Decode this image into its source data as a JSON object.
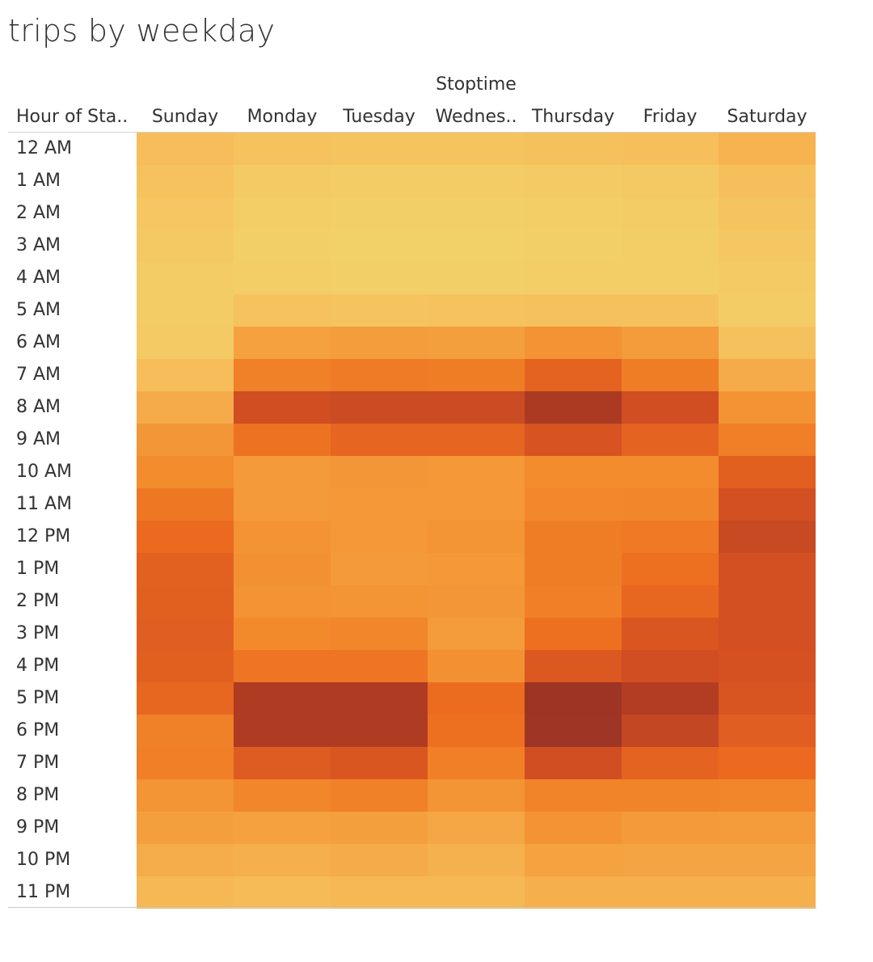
{
  "title": "trips by weekday",
  "chart_data": {
    "type": "heatmap",
    "title": "trips by weekday",
    "column_group_label": "Stoptime",
    "row_header": "Hour of Sta..",
    "columns": [
      "Sunday",
      "Monday",
      "Tuesday",
      "Wednes..",
      "Thursday",
      "Friday",
      "Saturday"
    ],
    "rows": [
      "12 AM",
      "1 AM",
      "2 AM",
      "3 AM",
      "4 AM",
      "5 AM",
      "6 AM",
      "7 AM",
      "8 AM",
      "9 AM",
      "10 AM",
      "11 AM",
      "12 PM",
      "1 PM",
      "2 PM",
      "3 PM",
      "4 PM",
      "5 PM",
      "6 PM",
      "7 PM",
      "8 PM",
      "9 PM",
      "10 PM",
      "11 PM"
    ],
    "values": [
      [
        0.14,
        0.11,
        0.1,
        0.1,
        0.12,
        0.13,
        0.2
      ],
      [
        0.11,
        0.06,
        0.05,
        0.05,
        0.06,
        0.07,
        0.13
      ],
      [
        0.09,
        0.04,
        0.03,
        0.03,
        0.04,
        0.05,
        0.1
      ],
      [
        0.07,
        0.03,
        0.02,
        0.02,
        0.03,
        0.04,
        0.08
      ],
      [
        0.05,
        0.04,
        0.03,
        0.03,
        0.04,
        0.04,
        0.06
      ],
      [
        0.05,
        0.11,
        0.1,
        0.11,
        0.12,
        0.12,
        0.05
      ],
      [
        0.06,
        0.3,
        0.32,
        0.31,
        0.38,
        0.33,
        0.12
      ],
      [
        0.14,
        0.47,
        0.5,
        0.49,
        0.62,
        0.49,
        0.24
      ],
      [
        0.24,
        0.74,
        0.76,
        0.76,
        0.9,
        0.74,
        0.38
      ],
      [
        0.36,
        0.54,
        0.61,
        0.61,
        0.71,
        0.62,
        0.48
      ],
      [
        0.42,
        0.34,
        0.36,
        0.35,
        0.42,
        0.42,
        0.64
      ],
      [
        0.52,
        0.34,
        0.35,
        0.35,
        0.44,
        0.45,
        0.73
      ],
      [
        0.58,
        0.38,
        0.35,
        0.37,
        0.49,
        0.51,
        0.77
      ],
      [
        0.63,
        0.39,
        0.34,
        0.35,
        0.49,
        0.55,
        0.73
      ],
      [
        0.64,
        0.38,
        0.37,
        0.36,
        0.48,
        0.6,
        0.73
      ],
      [
        0.65,
        0.43,
        0.45,
        0.33,
        0.55,
        0.69,
        0.73
      ],
      [
        0.64,
        0.53,
        0.53,
        0.39,
        0.68,
        0.74,
        0.72
      ],
      [
        0.6,
        0.89,
        0.89,
        0.57,
        1.0,
        0.86,
        0.7
      ],
      [
        0.47,
        0.88,
        0.88,
        0.55,
        0.99,
        0.79,
        0.65
      ],
      [
        0.48,
        0.66,
        0.69,
        0.48,
        0.74,
        0.62,
        0.58
      ],
      [
        0.37,
        0.45,
        0.47,
        0.37,
        0.46,
        0.46,
        0.45
      ],
      [
        0.31,
        0.3,
        0.31,
        0.27,
        0.38,
        0.34,
        0.33
      ],
      [
        0.23,
        0.22,
        0.24,
        0.21,
        0.29,
        0.28,
        0.28
      ],
      [
        0.17,
        0.16,
        0.17,
        0.17,
        0.22,
        0.22,
        0.22
      ]
    ],
    "color_scale": [
      "#f2d46c",
      "#f6bd5a",
      "#f5a342",
      "#f28a2c",
      "#ec6c1f",
      "#d65222",
      "#b33d22",
      "#9d3424"
    ],
    "grid": false,
    "legend": "none"
  }
}
